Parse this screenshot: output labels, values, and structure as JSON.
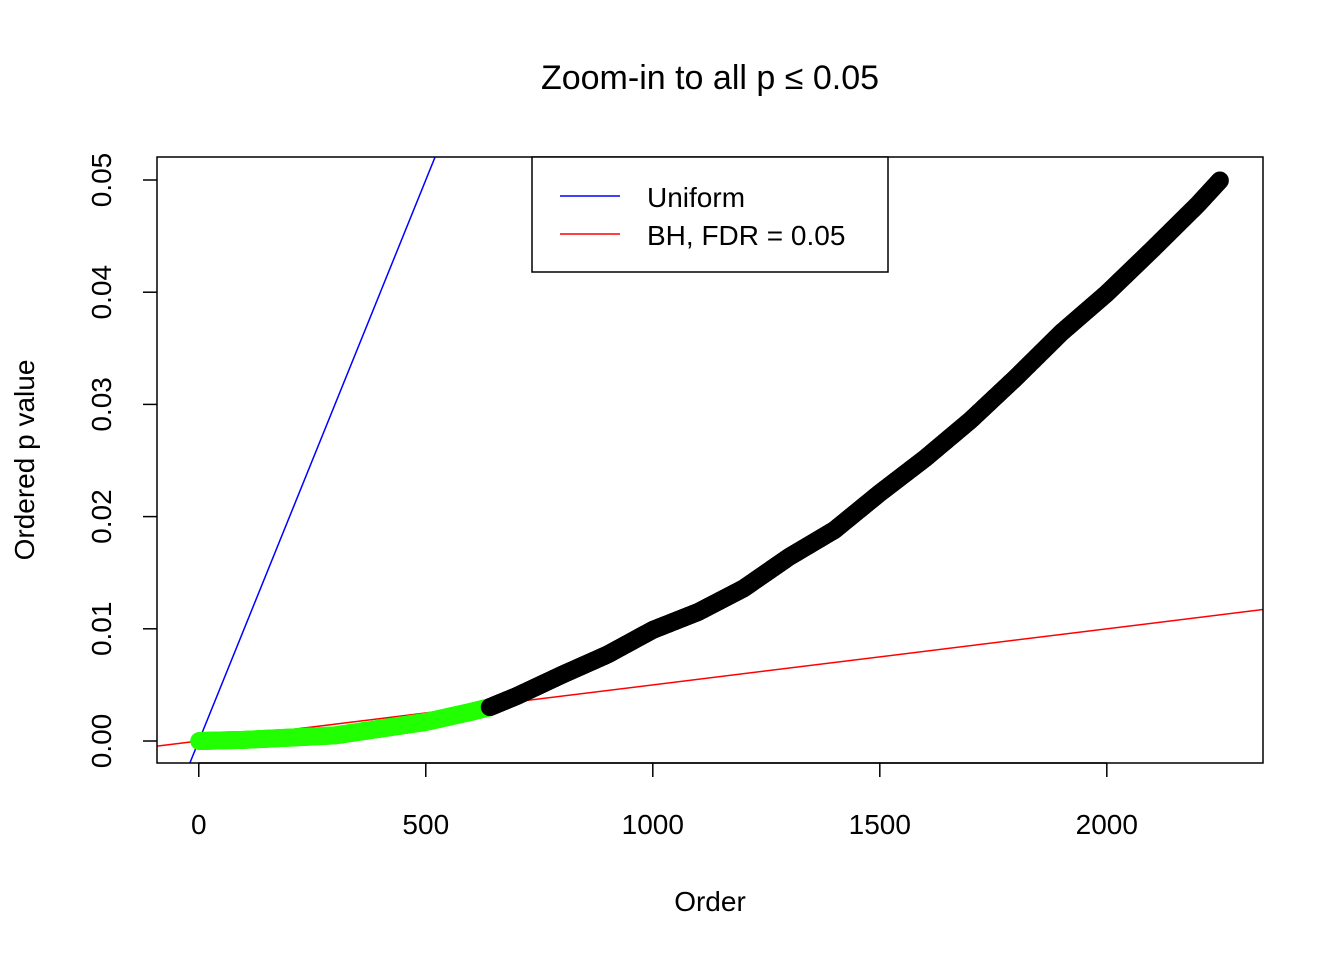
{
  "chart_data": {
    "type": "scatter",
    "title": "Zoom-in to all p ≤ 0.05",
    "xlabel": "Order",
    "ylabel": "Ordered p value",
    "xlim": [
      -92,
      2344
    ],
    "ylim": [
      -0.00196,
      0.05205
    ],
    "xticks": [
      0,
      500,
      1000,
      1500,
      2000
    ],
    "xtick_labels": [
      "0",
      "500",
      "1000",
      "1500",
      "2000"
    ],
    "yticks": [
      0,
      0.01,
      0.02,
      0.03,
      0.04,
      0.05
    ],
    "ytick_labels": [
      "0.00",
      "0.01",
      "0.02",
      "0.03",
      "0.04",
      "0.05"
    ],
    "grid": false,
    "legend_placement": "top-center",
    "points": {
      "order": [
        1,
        100,
        200,
        300,
        400,
        500,
        600,
        640,
        700,
        800,
        900,
        1000,
        1100,
        1200,
        1300,
        1400,
        1500,
        1600,
        1700,
        1800,
        1900,
        2000,
        2100,
        2200,
        2250
      ],
      "p": [
        0.0,
        0.0001,
        0.0003,
        0.0005,
        0.0011,
        0.0017,
        0.0026,
        0.003,
        0.004,
        0.0059,
        0.0077,
        0.0099,
        0.0115,
        0.0136,
        0.0164,
        0.0188,
        0.0221,
        0.0252,
        0.0286,
        0.0324,
        0.0364,
        0.0399,
        0.0438,
        0.0478,
        0.05
      ],
      "significant_up_to_order": 640,
      "significant_color": "#22ff00",
      "other_color": "#000000"
    },
    "lines": [
      {
        "name": "Uniform",
        "slope": 0.0001,
        "intercept": 0,
        "color": "#0000ff"
      },
      {
        "name": "BH, FDR = 0.05",
        "slope": 5e-06,
        "intercept": 0,
        "color": "#ff0000"
      }
    ]
  }
}
